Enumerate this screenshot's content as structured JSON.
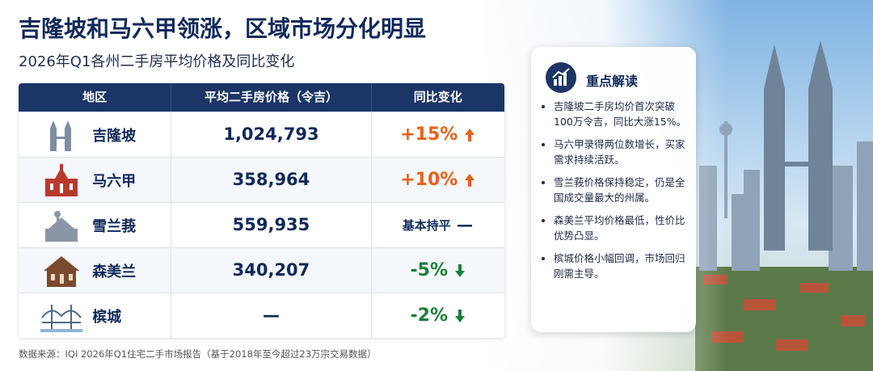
{
  "header": {
    "title": "吉隆坡和马六甲领涨，区域市场分化明显",
    "subtitle": "2026年Q1各州二手房平均价格及同比变化"
  },
  "table": {
    "columns": [
      "地区",
      "平均二手房价格（令吉）",
      "同比变化"
    ],
    "rows": [
      [
        "吉隆坡",
        "1,024,793",
        "+15%"
      ],
      [
        "马六甲",
        "358,964",
        "+10%"
      ],
      [
        "雪兰莪",
        "559,935",
        "基本持平"
      ],
      [
        "森美兰",
        "340,207",
        "-5%"
      ],
      [
        "槟城",
        "—",
        "-2%"
      ]
    ]
  },
  "insights": {
    "title": "重点解读",
    "items": [
      "吉隆坡二手房均价首次突破100万令吉，同比大涨15%。",
      "马六甲录得两位数增长，买家需求持续活跃。",
      "雪兰莪价格保持稳定，仍是全国成交量最大的州属。",
      "森美兰平均价格最低，性价比优势凸显。",
      "槟城价格小幅回调，市场回归刚需主导。"
    ]
  },
  "footer": {
    "source": "数据来源：IQI 2026年Q1住宅二手市场报告（基于2018年至今超过23万宗交易数据）"
  }
}
